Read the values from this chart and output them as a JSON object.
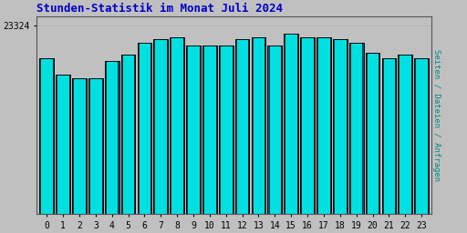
{
  "title": "Stunden-Statistik im Monat Juli 2024",
  "title_color": "#0000cc",
  "ylabel": "Seiten / Dateien / Anfragen",
  "ylabel_color": "#008888",
  "xlabel_values": [
    "0",
    "1",
    "2",
    "3",
    "4",
    "5",
    "6",
    "7",
    "8",
    "9",
    "10",
    "11",
    "12",
    "13",
    "14",
    "15",
    "16",
    "17",
    "18",
    "19",
    "20",
    "21",
    "22",
    "23"
  ],
  "ytick_label": "23324",
  "background_color": "#c0c0c0",
  "plot_background": "#c0c0c0",
  "bar_face_color": "#00e0e0",
  "bar_dark_color": "#006090",
  "values": [
    0.8,
    0.72,
    0.7,
    0.7,
    0.79,
    0.82,
    0.88,
    0.9,
    0.91,
    0.87,
    0.87,
    0.87,
    0.9,
    0.91,
    0.87,
    0.93,
    0.91,
    0.91,
    0.9,
    0.88,
    0.83,
    0.8,
    0.82,
    0.8
  ],
  "max_value": 23324,
  "grid_color": "#b0b0b0"
}
